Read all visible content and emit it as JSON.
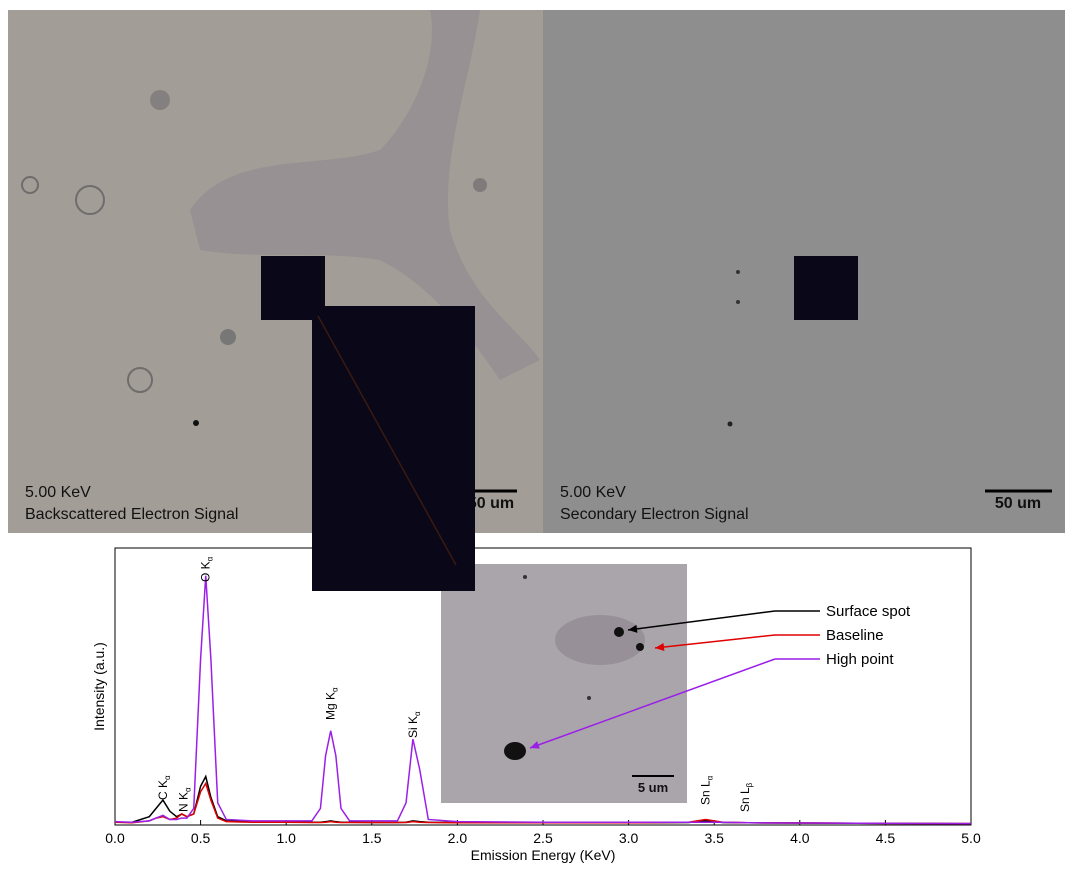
{
  "images": [
    {
      "energy": "5.00 KeV",
      "signal": "Backscattered Electron Signal",
      "scale_bar": "50 um"
    },
    {
      "energy": "5.00 KeV",
      "signal": "Secondary Electron Signal",
      "scale_bar": "50 um"
    }
  ],
  "inset": {
    "scale_bar": "5 um"
  },
  "chart_data": {
    "type": "line",
    "xlabel": "Emission Energy (KeV)",
    "ylabel": "Intensity (a.u.)",
    "xlim": [
      0,
      5
    ],
    "ylim": [
      0,
      100
    ],
    "xticks": [
      {
        "value": 0,
        "label": "0.0"
      },
      0.5,
      {
        "value": 1,
        "label": "1.0"
      },
      1.5,
      {
        "value": 2,
        "label": "2.0"
      },
      2.5,
      {
        "value": 3,
        "label": "3.0"
      },
      3.5,
      {
        "value": 4,
        "label": "4.0"
      },
      4.5,
      {
        "value": 5,
        "label": "5.0"
      }
    ],
    "x": [
      0,
      0.1,
      0.2,
      0.24,
      0.28,
      0.32,
      0.36,
      0.39,
      0.42,
      0.46,
      0.5,
      0.53,
      0.56,
      0.6,
      0.65,
      0.8,
      1.0,
      1.15,
      1.2,
      1.23,
      1.26,
      1.29,
      1.32,
      1.37,
      1.5,
      1.65,
      1.7,
      1.74,
      1.78,
      1.83,
      2.0,
      2.5,
      3.0,
      3.35,
      3.45,
      3.55,
      3.7,
      4.0,
      4.5,
      5.0
    ],
    "series": [
      {
        "name": "Surface spot",
        "color": "#000000",
        "values": [
          1,
          1,
          3,
          6,
          9,
          5,
          3,
          4,
          3,
          4,
          14,
          17.5,
          10,
          3,
          1.5,
          1.2,
          1,
          1,
          1,
          1.2,
          1.5,
          1.2,
          1,
          1,
          0.9,
          0.9,
          1,
          1.5,
          1.2,
          1,
          0.9,
          0.8,
          0.8,
          0.9,
          1.5,
          0.9,
          0.8,
          0.7,
          0.6,
          0.5
        ]
      },
      {
        "name": "Baseline",
        "color": "#e00000",
        "values": [
          1,
          0.8,
          1.5,
          2.5,
          3,
          2,
          2.5,
          4,
          3,
          4,
          12,
          15,
          9,
          2.5,
          1.2,
          1,
          1,
          0.9,
          0.9,
          1,
          1.2,
          1,
          0.9,
          0.9,
          0.9,
          0.9,
          0.9,
          1.2,
          1,
          0.9,
          0.8,
          0.8,
          0.8,
          1,
          2,
          1,
          0.8,
          0.7,
          0.6,
          0.5
        ]
      },
      {
        "name": "High point",
        "color": "#9b1fe8",
        "values": [
          1.2,
          1,
          1.5,
          2.5,
          3.5,
          2,
          2,
          2.5,
          2.5,
          6,
          60,
          90,
          60,
          8,
          2,
          1.5,
          1.5,
          1.5,
          6,
          25,
          34,
          25,
          6,
          1.5,
          1.5,
          1.5,
          8,
          31,
          20,
          2,
          1.2,
          1,
          1,
          1,
          1,
          1,
          0.8,
          0.7,
          0.6,
          0.5
        ]
      }
    ],
    "annotations": [
      {
        "label": "C K",
        "subscript": "α",
        "x": 0.28
      },
      {
        "label": "N K",
        "subscript": "α",
        "x": 0.4
      },
      {
        "label": "O K",
        "subscript": "α",
        "x": 0.53
      },
      {
        "label": "Mg K",
        "subscript": "α",
        "x": 1.26
      },
      {
        "label": "Si K",
        "subscript": "α",
        "x": 1.74
      },
      {
        "label": "Sn L",
        "subscript": "α",
        "x": 3.45
      },
      {
        "label": "Sn L",
        "subscript": "β",
        "x": 3.68
      }
    ]
  }
}
